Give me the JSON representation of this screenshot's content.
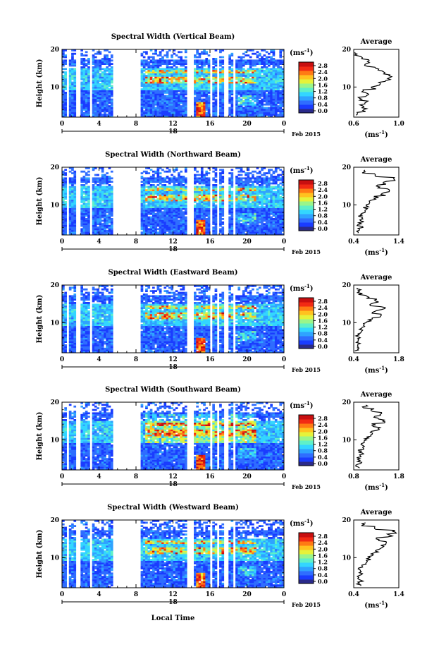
{
  "figure": {
    "xlabel": "Local Time",
    "date_label": "Feb 2015",
    "day_label": "18",
    "units": "(ms",
    "units_exp": "-1",
    "avg_units": "(ms",
    "avg_exp": "-1"
  },
  "colorbar": {
    "ticks": [
      "2.8",
      "2.4",
      "2.0",
      "1.6",
      "1.2",
      "0.8",
      "0.4",
      "0.0"
    ],
    "colors": [
      "#2a2a8a",
      "#1a3cff",
      "#2f6dff",
      "#2fa3ff",
      "#33d6ff",
      "#5ff0c8",
      "#9af58a",
      "#e6f23a",
      "#ffc21f",
      "#ff7a14",
      "#f22a14",
      "#c80f10"
    ]
  },
  "chart_data": [
    {
      "type": "heatmap",
      "title": "Spectral Width (Vertical Beam)",
      "xlabel": "Local Time",
      "ylabel": "Height (km)",
      "x_ticks": [
        "0",
        "4",
        "8",
        "12",
        "16",
        "20",
        "0"
      ],
      "y_ticks": [
        "20",
        "10"
      ],
      "xlim": [
        0,
        24
      ],
      "ylim": [
        2,
        20
      ],
      "gaps": [
        [
          0.5,
          0.8
        ],
        [
          1.6,
          1.9
        ],
        [
          3.0,
          3.3
        ],
        [
          5.6,
          8.4
        ],
        [
          13.6,
          14.3
        ],
        [
          15.9,
          16.2
        ],
        [
          16.8,
          17.1
        ],
        [
          17.6,
          17.9
        ],
        [
          18.5,
          18.8
        ]
      ],
      "colorbar_label": "(ms-1)",
      "colorbar_ticks": [
        0.0,
        0.4,
        0.8,
        1.2,
        1.6,
        2.0,
        2.4,
        2.8
      ],
      "avg": {
        "title": "Average",
        "xlabel": "(ms-1)",
        "x_ticks": [
          "0.6",
          "1.0"
        ],
        "xlim": [
          0.6,
          1.0
        ],
        "y_ticks": [
          "20",
          "10"
        ],
        "ylim": [
          2,
          20
        ],
        "heights": [
          3,
          4,
          5,
          6,
          7,
          8,
          9,
          10,
          11,
          12,
          13,
          14,
          15,
          16,
          17,
          18,
          19
        ],
        "values": [
          0.64,
          0.7,
          0.67,
          0.71,
          0.66,
          0.73,
          0.69,
          0.78,
          0.82,
          0.9,
          0.93,
          0.86,
          0.8,
          0.72,
          0.74,
          0.66,
          0.62
        ]
      }
    },
    {
      "type": "heatmap",
      "title": "Spectral Width (Northward Beam)",
      "xlabel": "Local Time",
      "ylabel": "Height (km)",
      "x_ticks": [
        "0",
        "4",
        "8",
        "12",
        "16",
        "20",
        "0"
      ],
      "y_ticks": [
        "20",
        "10"
      ],
      "xlim": [
        0,
        24
      ],
      "ylim": [
        2,
        20
      ],
      "gaps": [
        [
          0.5,
          0.8
        ],
        [
          1.6,
          1.9
        ],
        [
          3.0,
          3.3
        ],
        [
          5.6,
          8.4
        ],
        [
          13.6,
          14.3
        ],
        [
          15.9,
          16.2
        ],
        [
          16.8,
          17.1
        ],
        [
          17.6,
          17.9
        ],
        [
          18.5,
          18.8
        ]
      ],
      "colorbar_label": "(ms-1)",
      "colorbar_ticks": [
        0.0,
        0.4,
        0.8,
        1.2,
        1.6,
        2.0,
        2.4,
        2.8
      ],
      "avg": {
        "title": "Average",
        "xlabel": "(ms-1)",
        "x_ticks": [
          "0.4",
          "1.4"
        ],
        "xlim": [
          0.4,
          1.4
        ],
        "y_ticks": [
          "20",
          "10"
        ],
        "ylim": [
          2,
          20
        ],
        "heights": [
          3,
          4,
          5,
          6,
          7,
          8,
          9,
          10,
          11,
          12,
          13,
          14,
          15,
          16,
          17,
          18,
          19
        ],
        "values": [
          0.5,
          0.55,
          0.52,
          0.58,
          0.54,
          0.6,
          0.66,
          0.72,
          0.8,
          0.9,
          1.05,
          1.2,
          0.95,
          1.1,
          1.3,
          0.9,
          0.6
        ]
      }
    },
    {
      "type": "heatmap",
      "title": "Spectral Width (Eastward Beam)",
      "xlabel": "Local Time",
      "ylabel": "Height (km)",
      "x_ticks": [
        "0",
        "4",
        "8",
        "12",
        "16",
        "20",
        "0"
      ],
      "y_ticks": [
        "20",
        "10"
      ],
      "xlim": [
        0,
        24
      ],
      "ylim": [
        2,
        20
      ],
      "gaps": [
        [
          0.5,
          0.8
        ],
        [
          1.6,
          1.9
        ],
        [
          3.0,
          3.3
        ],
        [
          5.6,
          8.4
        ],
        [
          13.6,
          14.3
        ],
        [
          15.9,
          16.2
        ],
        [
          16.8,
          17.1
        ],
        [
          17.6,
          17.9
        ],
        [
          18.5,
          18.8
        ]
      ],
      "colorbar_label": "(ms-1)",
      "colorbar_ticks": [
        0.0,
        0.4,
        0.8,
        1.2,
        1.6,
        2.0,
        2.4,
        2.8
      ],
      "avg": {
        "title": "Average",
        "xlabel": "(ms-1)",
        "x_ticks": [
          "0.4",
          "1.8"
        ],
        "xlim": [
          0.4,
          1.8
        ],
        "y_ticks": [
          "20",
          "10"
        ],
        "ylim": [
          2,
          20
        ],
        "heights": [
          3,
          4,
          5,
          6,
          7,
          8,
          9,
          10,
          11,
          12,
          13,
          14,
          15,
          16,
          17,
          18,
          19
        ],
        "values": [
          0.5,
          0.54,
          0.52,
          0.56,
          0.55,
          0.6,
          0.66,
          0.75,
          0.9,
          1.25,
          1.05,
          1.3,
          0.95,
          1.1,
          0.8,
          0.6,
          0.55
        ]
      }
    },
    {
      "type": "heatmap",
      "title": "Spectral Width (Southward Beam)",
      "xlabel": "Local Time",
      "ylabel": "Height (km)",
      "x_ticks": [
        "0",
        "4",
        "8",
        "12",
        "16",
        "20",
        "0"
      ],
      "y_ticks": [
        "20",
        "10"
      ],
      "xlim": [
        0,
        24
      ],
      "ylim": [
        2,
        20
      ],
      "gaps": [
        [
          0.5,
          0.8
        ],
        [
          1.6,
          1.9
        ],
        [
          3.0,
          3.3
        ],
        [
          5.6,
          8.4
        ],
        [
          13.6,
          14.3
        ],
        [
          15.9,
          16.2
        ],
        [
          16.8,
          17.1
        ],
        [
          17.6,
          17.9
        ],
        [
          18.5,
          18.8
        ]
      ],
      "colorbar_label": "(ms-1)",
      "colorbar_ticks": [
        0.0,
        0.4,
        0.8,
        1.2,
        1.6,
        2.0,
        2.4,
        2.8
      ],
      "avg": {
        "title": "Average",
        "xlabel": "(ms-1)",
        "x_ticks": [
          "0.8",
          "1.8"
        ],
        "xlim": [
          0.8,
          1.8
        ],
        "y_ticks": [
          "20",
          "10"
        ],
        "ylim": [
          2,
          20
        ],
        "heights": [
          3,
          4,
          5,
          6,
          7,
          8,
          9,
          10,
          11,
          12,
          13,
          14,
          15,
          16,
          17,
          18,
          19
        ],
        "values": [
          0.88,
          0.92,
          0.9,
          0.97,
          0.94,
          1.0,
          0.98,
          1.05,
          1.15,
          1.2,
          1.35,
          1.25,
          1.45,
          1.3,
          1.4,
          1.2,
          1.05
        ]
      }
    },
    {
      "type": "heatmap",
      "title": "Spectral Width (Westward Beam)",
      "xlabel": "Local Time",
      "ylabel": "Height (km)",
      "x_ticks": [
        "0",
        "4",
        "8",
        "12",
        "16",
        "20",
        "0"
      ],
      "y_ticks": [
        "20",
        "10"
      ],
      "xlim": [
        0,
        24
      ],
      "ylim": [
        2,
        20
      ],
      "gaps": [
        [
          0.5,
          0.8
        ],
        [
          1.6,
          1.9
        ],
        [
          3.0,
          3.3
        ],
        [
          5.6,
          8.4
        ],
        [
          13.6,
          14.3
        ],
        [
          15.9,
          16.2
        ],
        [
          16.8,
          17.1
        ],
        [
          17.6,
          17.9
        ],
        [
          18.5,
          18.8
        ]
      ],
      "colorbar_label": "(ms-1)",
      "colorbar_ticks": [
        0.0,
        0.4,
        0.8,
        1.2,
        1.6,
        2.0,
        2.4,
        2.8
      ],
      "avg": {
        "title": "Average",
        "xlabel": "(ms-1)",
        "x_ticks": [
          "0.4",
          "1.4"
        ],
        "xlim": [
          0.4,
          1.4
        ],
        "y_ticks": [
          "20",
          "10"
        ],
        "ylim": [
          2,
          20
        ],
        "heights": [
          3,
          4,
          5,
          6,
          7,
          8,
          9,
          10,
          11,
          12,
          13,
          14,
          15,
          16,
          17,
          18,
          19
        ],
        "values": [
          0.5,
          0.55,
          0.53,
          0.58,
          0.55,
          0.62,
          0.66,
          0.72,
          0.8,
          0.92,
          1.05,
          1.15,
          0.95,
          1.2,
          1.3,
          0.9,
          0.62
        ]
      }
    }
  ]
}
